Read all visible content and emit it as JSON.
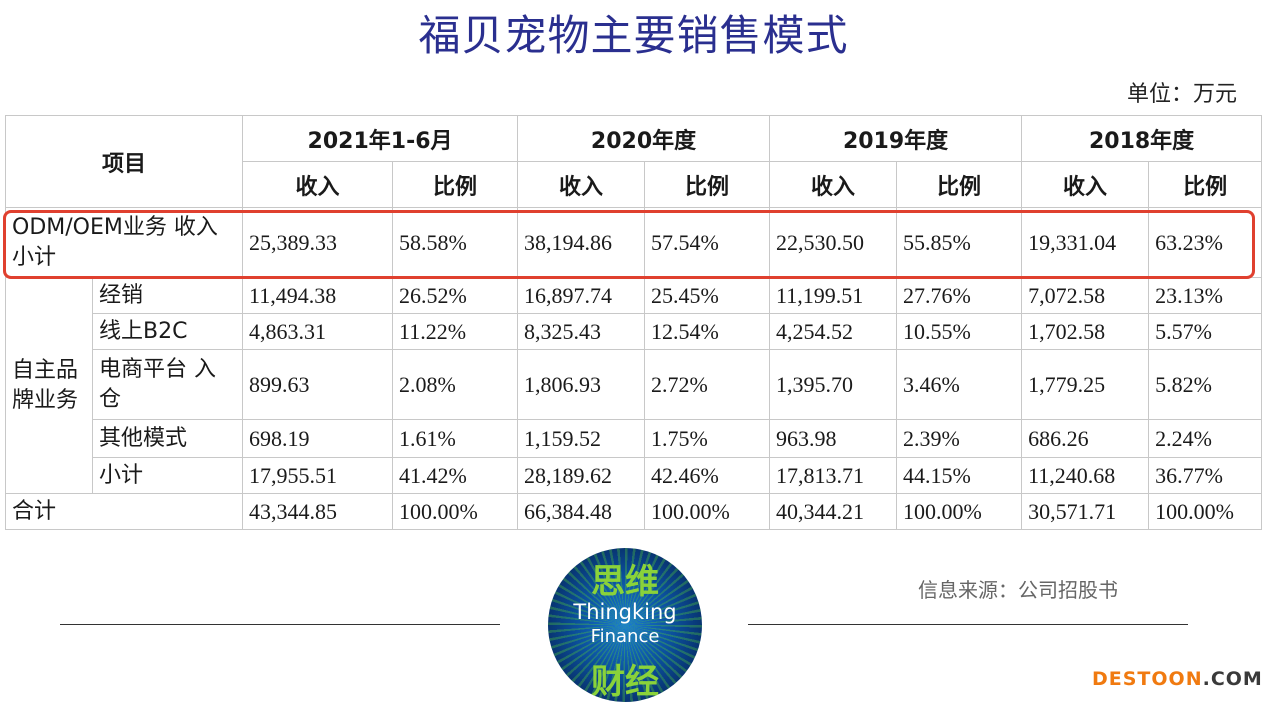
{
  "title": "福贝宠物主要销售模式",
  "unit": "单位：万元",
  "table": {
    "item_header": "项目",
    "periods": [
      "2021年1-6月",
      "2020年度",
      "2019年度",
      "2018年度"
    ],
    "sub_headers": [
      "收入",
      "比例"
    ],
    "odm_row": {
      "label": "ODM/OEM业务 收入小计",
      "values": [
        "25,389.33",
        "58.58%",
        "38,194.86",
        "57.54%",
        "22,530.50",
        "55.85%",
        "19,331.04",
        "63.23%"
      ]
    },
    "group_label": "自主品牌业务",
    "group_rows": [
      {
        "label": "经销",
        "values": [
          "11,494.38",
          "26.52%",
          "16,897.74",
          "25.45%",
          "11,199.51",
          "27.76%",
          "7,072.58",
          "23.13%"
        ]
      },
      {
        "label": "线上B2C",
        "values": [
          "4,863.31",
          "11.22%",
          "8,325.43",
          "12.54%",
          "4,254.52",
          "10.55%",
          "1,702.58",
          "5.57%"
        ]
      },
      {
        "label": "电商平台 入仓",
        "values": [
          "899.63",
          "2.08%",
          "1,806.93",
          "2.72%",
          "1,395.70",
          "3.46%",
          "1,779.25",
          "5.82%"
        ]
      },
      {
        "label": "其他模式",
        "values": [
          "698.19",
          "1.61%",
          "1,159.52",
          "1.75%",
          "963.98",
          "2.39%",
          "686.26",
          "2.24%"
        ]
      },
      {
        "label": "小计",
        "values": [
          "17,955.51",
          "41.42%",
          "28,189.62",
          "42.46%",
          "17,813.71",
          "44.15%",
          "11,240.68",
          "36.77%"
        ]
      }
    ],
    "total_row": {
      "label": "合计",
      "values": [
        "43,344.85",
        "100.00%",
        "66,384.48",
        "100.00%",
        "40,344.21",
        "100.00%",
        "30,571.71",
        "100.00%"
      ]
    }
  },
  "source": "信息来源：公司招股书",
  "logo": {
    "cn_top": "思维",
    "en_line1": "Thingking",
    "en_line2": "Finance",
    "cn_bottom": "财经"
  },
  "watermark": {
    "part1": "DESTOON",
    "part2": ".COM"
  },
  "colors": {
    "title": "#2a2f8f",
    "highlight_border": "#e0402f",
    "logo_green": "#8ad23a",
    "watermark_orange": "#f07a10"
  }
}
